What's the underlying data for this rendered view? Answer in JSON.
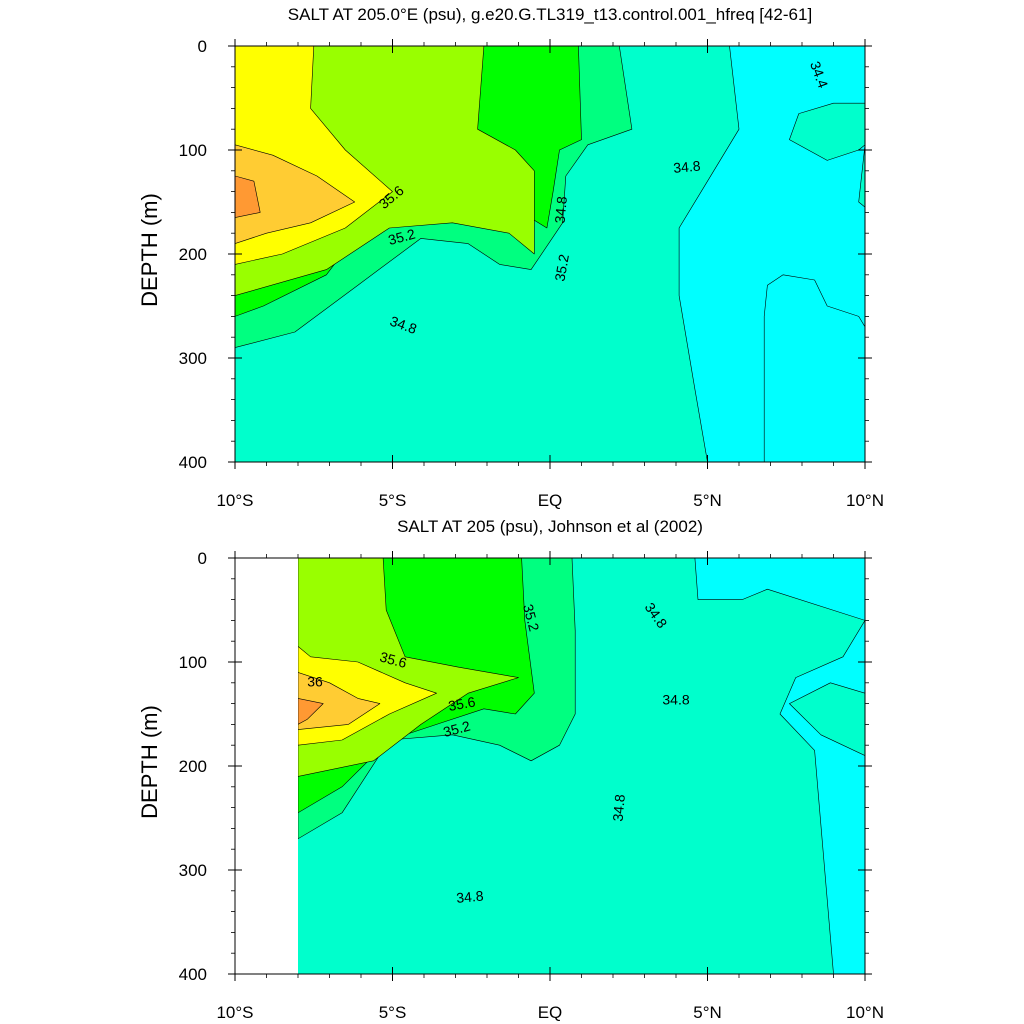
{
  "colors": {
    "c34_0": "#33e6ff",
    "c34_4": "#00ffff",
    "c34_8": "#00ffcc",
    "c35_2": "#00ff80",
    "c35_6": "#00ff00",
    "c36_0": "#99ff00",
    "c36_4": "#ffff00",
    "c36_8": "#ffcc33",
    "c37_2": "#ff9933",
    "line": "#000000"
  },
  "chart_data": [
    {
      "type": "heatmap",
      "title": "SALT AT 205.0°E (psu), g.e20.G.TL319_t13.control.001_hfreq [42-61]",
      "ylabel": "DEPTH (m)",
      "xlim": [
        -10,
        10
      ],
      "ylim": [
        0,
        400
      ],
      "y_inverted": true,
      "x_ticks": [
        -10,
        -5,
        0,
        5,
        10
      ],
      "x_tick_labels": [
        "10°S",
        "5°S",
        "EQ",
        "5°N",
        "10°N"
      ],
      "y_ticks": [
        0,
        100,
        200,
        300,
        400
      ],
      "y_tick_labels": [
        "0",
        "100",
        "200",
        "300",
        "400"
      ],
      "contour_labels": [
        "35.6",
        "35.2",
        "34.8",
        "35.2",
        "34.8",
        "34.8",
        "34.4"
      ],
      "regions": [
        {
          "level": "34.8-35.2",
          "polygon": [
            [
              -10,
              0
            ],
            [
              10,
              0
            ],
            [
              10,
              400
            ],
            [
              -10,
              400
            ]
          ]
        },
        {
          "level": "34.4-34.8",
          "polygon": [
            [
              5.7,
              0
            ],
            [
              10,
              0
            ],
            [
              10,
              400
            ],
            [
              6.8,
              400
            ],
            [
              6.8,
              260
            ],
            [
              6.9,
              230
            ],
            [
              7.4,
              220
            ],
            [
              8.4,
              225
            ],
            [
              8.8,
              250
            ],
            [
              9.8,
              260
            ],
            [
              10,
              270
            ],
            [
              10,
              55
            ],
            [
              9.0,
              55
            ],
            [
              7.9,
              65
            ],
            [
              7.6,
              90
            ],
            [
              8.8,
              110
            ],
            [
              9.8,
              100
            ],
            [
              10,
              95
            ],
            [
              9.8,
              150
            ],
            [
              10,
              155
            ],
            [
              10,
              400
            ],
            [
              5.0,
              400
            ],
            [
              4.6,
              330
            ],
            [
              4.1,
              240
            ],
            [
              4.1,
              175
            ],
            [
              5.0,
              130
            ],
            [
              6.0,
              80
            ],
            [
              5.7,
              0
            ]
          ]
        },
        {
          "level": "35.2-35.6",
          "polygon": [
            [
              -10,
              0
            ],
            [
              2.2,
              0
            ],
            [
              2.6,
              80
            ],
            [
              1.2,
              95
            ],
            [
              0.5,
              125
            ],
            [
              0.4,
              170
            ],
            [
              -0.6,
              215
            ],
            [
              -1.6,
              210
            ],
            [
              -2.6,
              190
            ],
            [
              -4.1,
              185
            ],
            [
              -6.1,
              230
            ],
            [
              -8.1,
              275
            ],
            [
              -10,
              290
            ]
          ]
        },
        {
          "level": "35.6-36.0",
          "polygon": [
            [
              -10,
              0
            ],
            [
              0.9,
              0
            ],
            [
              1.0,
              90
            ],
            [
              0.3,
              100
            ],
            [
              0.1,
              140
            ],
            [
              -0.1,
              175
            ],
            [
              -0.9,
              160
            ],
            [
              -1.6,
              130
            ],
            [
              -3.1,
              110
            ],
            [
              -5.1,
              140
            ],
            [
              -7.1,
              220
            ],
            [
              -9.1,
              250
            ],
            [
              -10,
              260
            ]
          ]
        },
        {
          "level": "36.0-36.4",
          "polygon": [
            [
              -10,
              0
            ],
            [
              -2.1,
              0
            ],
            [
              -2.3,
              80
            ],
            [
              -1.1,
              100
            ],
            [
              -0.5,
              120
            ],
            [
              -0.5,
              200
            ],
            [
              -1.3,
              180
            ],
            [
              -3.1,
              170
            ],
            [
              -5.1,
              175
            ],
            [
              -7.1,
              215
            ],
            [
              -10,
              240
            ]
          ]
        },
        {
          "level": "36.4-36.8",
          "polygon": [
            [
              -10,
              0
            ],
            [
              -7.5,
              0
            ],
            [
              -7.6,
              60
            ],
            [
              -6.5,
              100
            ],
            [
              -5.0,
              140
            ],
            [
              -6.5,
              175
            ],
            [
              -8.5,
              200
            ],
            [
              -10,
              210
            ]
          ]
        },
        {
          "level": "36.8-37.2",
          "polygon": [
            [
              -10,
              95
            ],
            [
              -8.8,
              105
            ],
            [
              -7.4,
              125
            ],
            [
              -6.2,
              150
            ],
            [
              -7.6,
              170
            ],
            [
              -9.0,
              180
            ],
            [
              -10,
              190
            ]
          ]
        },
        {
          "level": "37.2-37.6",
          "polygon": [
            [
              -10,
              125
            ],
            [
              -9.4,
              130
            ],
            [
              -9.2,
              160
            ],
            [
              -10,
              165
            ]
          ]
        }
      ]
    },
    {
      "type": "heatmap",
      "title": "SALT AT 205 (psu), Johnson et al (2002)",
      "ylabel": "DEPTH (m)",
      "xlim": [
        -10,
        10
      ],
      "ylim": [
        0,
        400
      ],
      "y_inverted": true,
      "data_xlim": [
        -8,
        10
      ],
      "x_ticks": [
        -10,
        -5,
        0,
        5,
        10
      ],
      "x_tick_labels": [
        "10°S",
        "5°S",
        "EQ",
        "5°N",
        "10°N"
      ],
      "y_ticks": [
        0,
        100,
        200,
        300,
        400
      ],
      "y_tick_labels": [
        "0",
        "100",
        "200",
        "300",
        "400"
      ],
      "contour_labels": [
        "35.2",
        "34.8",
        "35.6",
        "36",
        "35.6",
        "35.2",
        "34.8",
        "34.8",
        "34.8"
      ],
      "regions": [
        {
          "level": "34.8-35.2",
          "polygon": [
            [
              -8,
              0
            ],
            [
              10,
              0
            ],
            [
              10,
              400
            ],
            [
              -8,
              400
            ]
          ]
        },
        {
          "level": "34.4-34.8",
          "polygon": [
            [
              4.6,
              0
            ],
            [
              10,
              0
            ],
            [
              10,
              130
            ],
            [
              8.9,
              120
            ],
            [
              7.6,
              140
            ],
            [
              8.6,
              170
            ],
            [
              10,
              190
            ],
            [
              10,
              400
            ],
            [
              9.0,
              400
            ],
            [
              8.4,
              185
            ],
            [
              7.3,
              150
            ],
            [
              7.8,
              115
            ],
            [
              9.3,
              95
            ],
            [
              10,
              60
            ],
            [
              6.9,
              30
            ],
            [
              6.1,
              40
            ],
            [
              4.7,
              40
            ],
            [
              4.6,
              0
            ]
          ]
        },
        {
          "level": "35.2-35.6",
          "polygon": [
            [
              -8,
              0
            ],
            [
              0.7,
              0
            ],
            [
              0.8,
              70
            ],
            [
              0.8,
              150
            ],
            [
              0.3,
              180
            ],
            [
              -0.6,
              195
            ],
            [
              -1.6,
              180
            ],
            [
              -3.1,
              170
            ],
            [
              -5.1,
              175
            ],
            [
              -6.6,
              245
            ],
            [
              -8,
              270
            ]
          ]
        },
        {
          "level": "35.6-36.0",
          "polygon": [
            [
              -8,
              0
            ],
            [
              -0.9,
              0
            ],
            [
              -0.8,
              60
            ],
            [
              -0.5,
              130
            ],
            [
              -1.1,
              150
            ],
            [
              -2.1,
              145
            ],
            [
              -3.6,
              160
            ],
            [
              -5.1,
              175
            ],
            [
              -6.6,
              220
            ],
            [
              -8,
              245
            ]
          ]
        },
        {
          "level": "36.0-36.4",
          "polygon": [
            [
              -8,
              0
            ],
            [
              -5.3,
              0
            ],
            [
              -5.2,
              50
            ],
            [
              -4.6,
              95
            ],
            [
              -2.9,
              105
            ],
            [
              -1.0,
              115
            ],
            [
              -2.6,
              130
            ],
            [
              -4.1,
              160
            ],
            [
              -5.6,
              195
            ],
            [
              -8,
              210
            ]
          ]
        },
        {
          "level": "36.4-36.8",
          "polygon": [
            [
              -8,
              85
            ],
            [
              -7.6,
              95
            ],
            [
              -6.1,
              100
            ],
            [
              -4.6,
              120
            ],
            [
              -3.6,
              130
            ],
            [
              -5.1,
              150
            ],
            [
              -6.6,
              175
            ],
            [
              -8,
              180
            ]
          ]
        },
        {
          "level": "36.8-37.2",
          "polygon": [
            [
              -8,
              110
            ],
            [
              -7.0,
              120
            ],
            [
              -6.1,
              135
            ],
            [
              -5.4,
              140
            ],
            [
              -6.4,
              160
            ],
            [
              -8,
              165
            ]
          ]
        },
        {
          "level": "37.2-37.6",
          "polygon": [
            [
              -8,
              135
            ],
            [
              -7.2,
              140
            ],
            [
              -7.7,
              155
            ],
            [
              -8,
              160
            ]
          ]
        }
      ]
    }
  ],
  "_contour_label_positions": []
}
